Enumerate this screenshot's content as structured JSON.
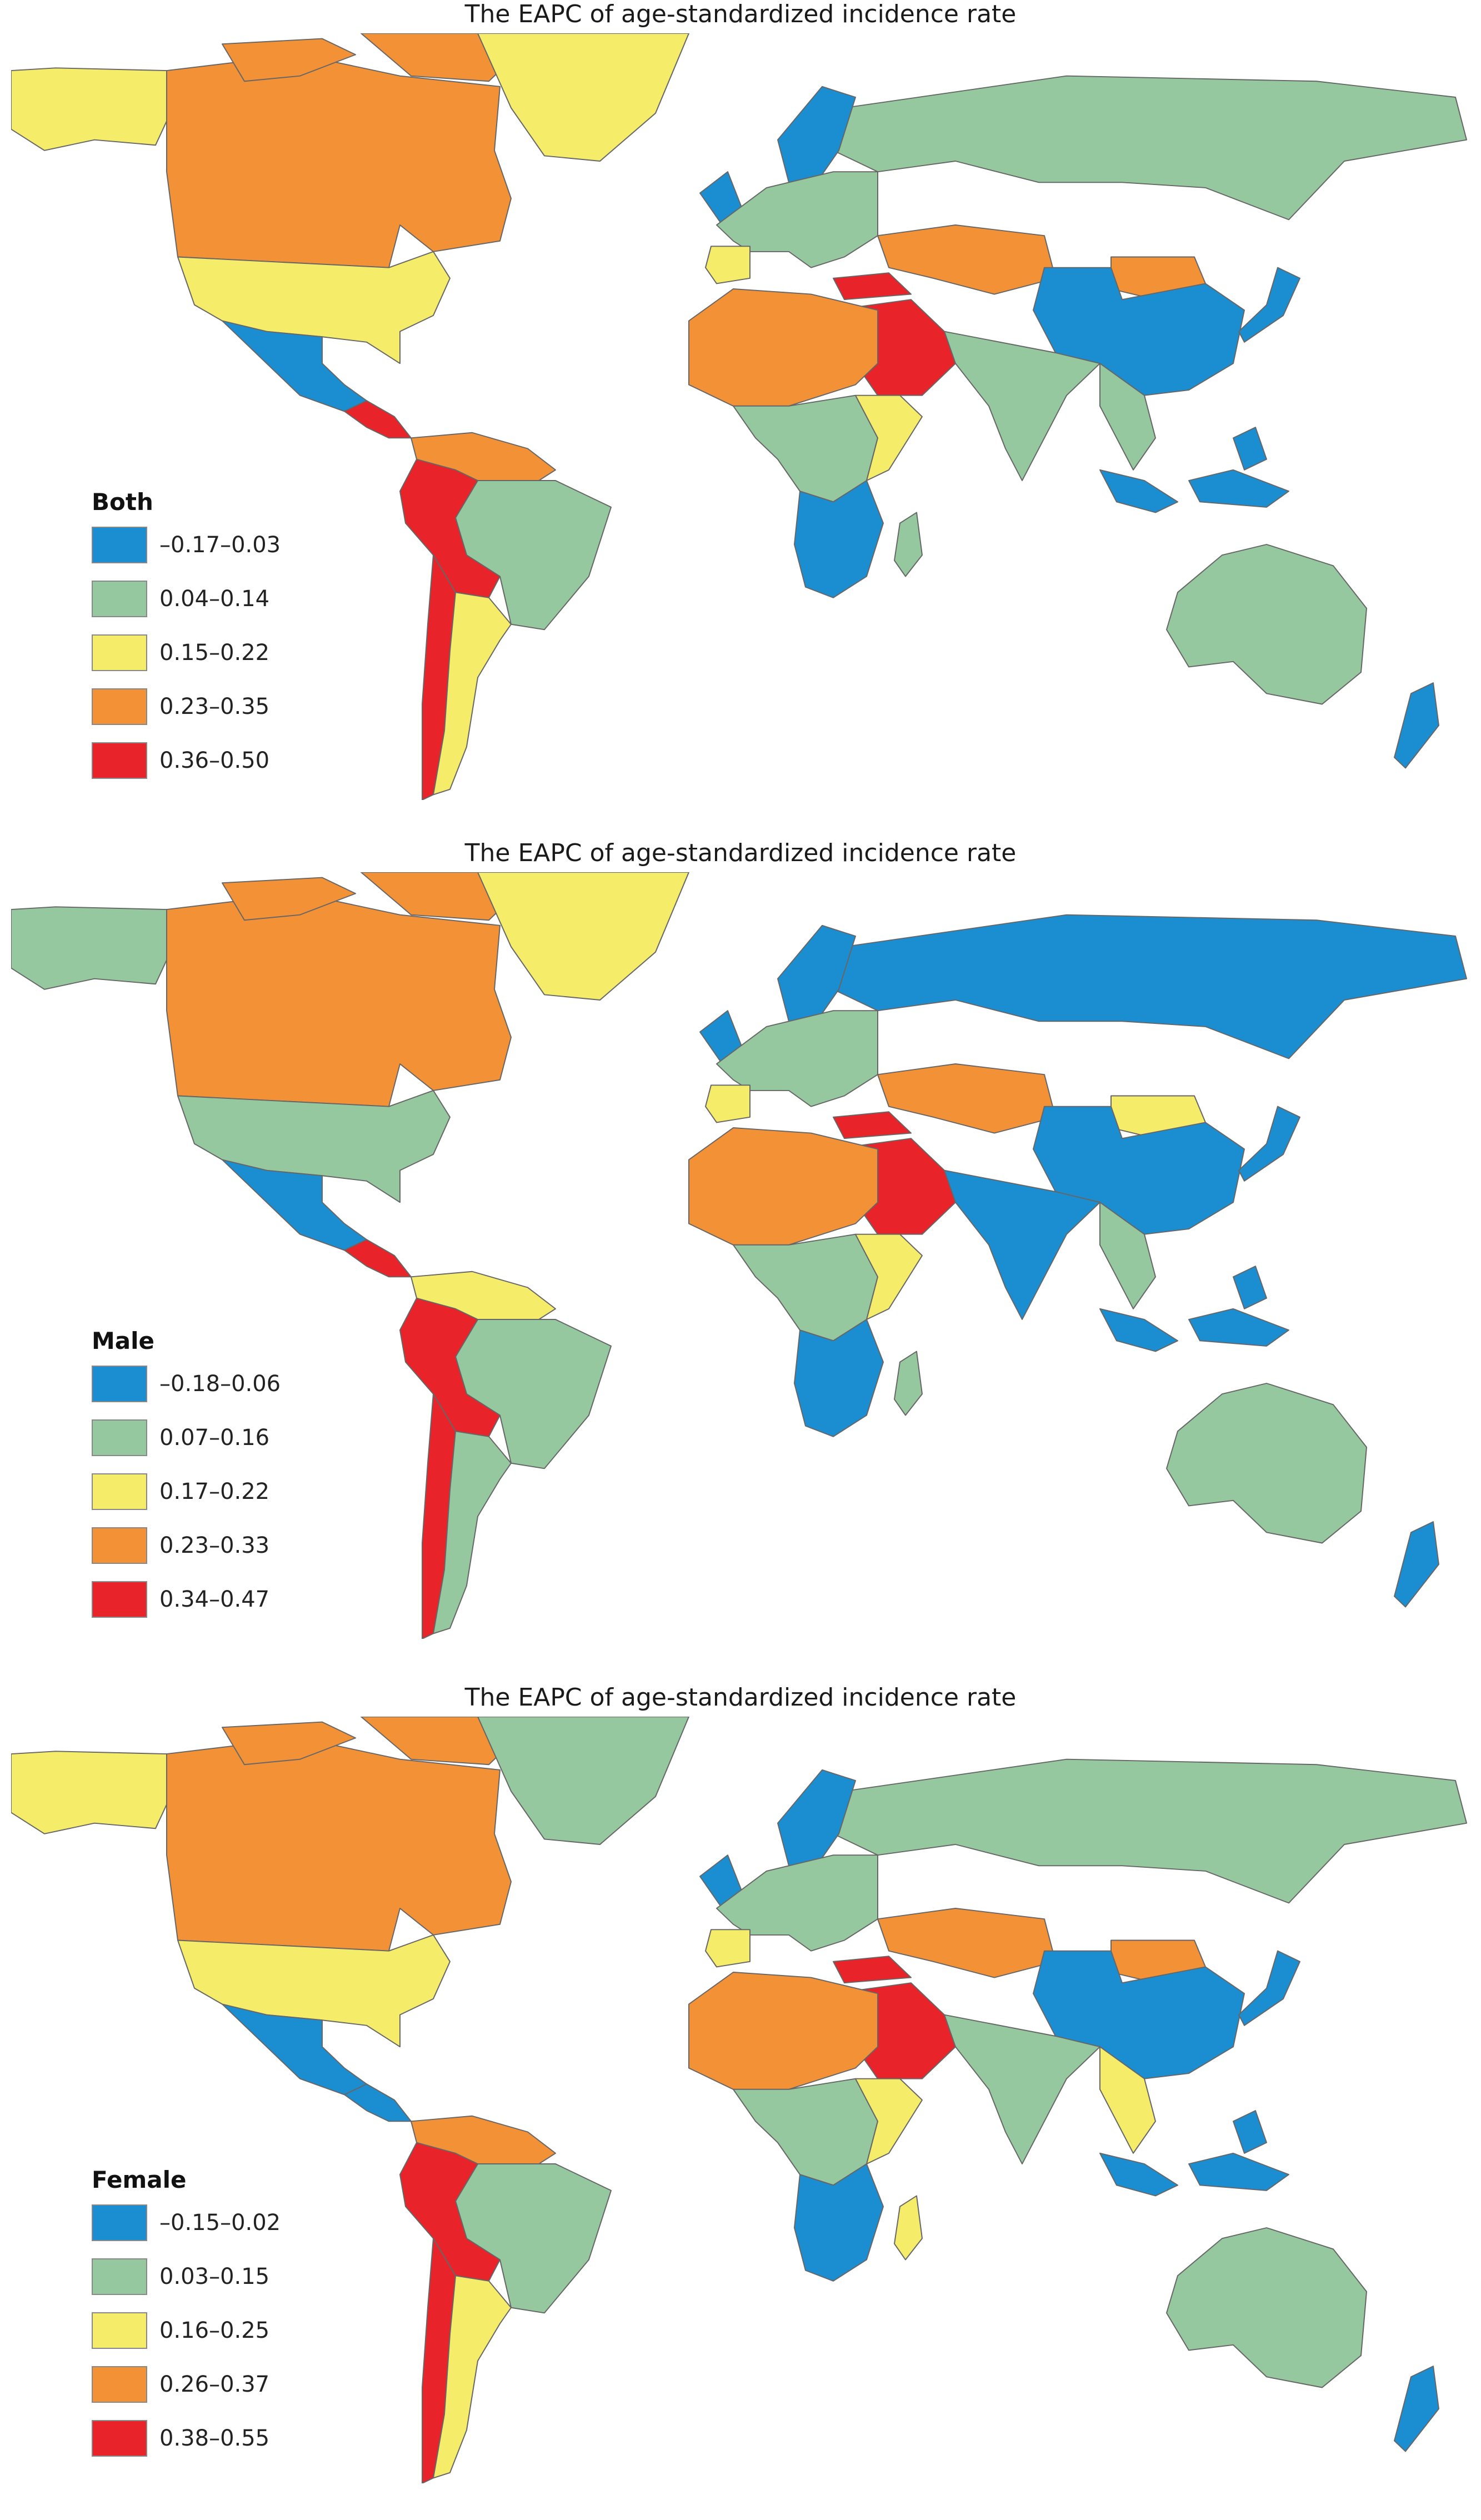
{
  "colors": {
    "blue": "#1b8ed1",
    "green": "#95c89e",
    "yellow": "#f5ec6a",
    "orange": "#f39136",
    "red": "#e8242a",
    "border": "#666666"
  },
  "panels": [
    {
      "title": "The EAPC of age-standardized incidence rate",
      "legend": {
        "title": "Both",
        "bins": [
          {
            "label": "–0.17–0.03",
            "color": "#1b8ed1"
          },
          {
            "label": "0.04–0.14",
            "color": "#95c89e"
          },
          {
            "label": "0.15–0.22",
            "color": "#f5ec6a"
          },
          {
            "label": "0.23–0.35",
            "color": "#f39136"
          },
          {
            "label": "0.36–0.50",
            "color": "#e8242a"
          }
        ]
      },
      "regions": {
        "alaska": "yellow",
        "canada": "orange",
        "arctic": "orange",
        "greenland": "yellow",
        "usa": "yellow",
        "mexico": "blue",
        "central_america": "red",
        "north_sa": "orange",
        "brazil": "green",
        "peru_bolivia": "red",
        "chile": "red",
        "argentina": "yellow",
        "russia": "green",
        "europe": "green",
        "uk_scandinavia": "blue",
        "iberia": "yellow",
        "china": "blue",
        "kazakhstan": "orange",
        "mongolia": "orange",
        "india": "green",
        "middle_east": "red",
        "turkey": "red",
        "north_africa": "orange",
        "central_africa": "green",
        "east_africa": "yellow",
        "south_africa": "blue",
        "madagascar": "green",
        "se_asia": "green",
        "indonesia": "blue",
        "japan": "blue",
        "australia": "green",
        "new_zealand": "blue"
      }
    },
    {
      "title": "The EAPC of age-standardized incidence rate",
      "legend": {
        "title": "Male",
        "bins": [
          {
            "label": "–0.18–0.06",
            "color": "#1b8ed1"
          },
          {
            "label": "0.07–0.16",
            "color": "#95c89e"
          },
          {
            "label": "0.17–0.22",
            "color": "#f5ec6a"
          },
          {
            "label": "0.23–0.33",
            "color": "#f39136"
          },
          {
            "label": "0.34–0.47",
            "color": "#e8242a"
          }
        ]
      },
      "regions": {
        "alaska": "green",
        "canada": "orange",
        "arctic": "orange",
        "greenland": "yellow",
        "usa": "green",
        "mexico": "blue",
        "central_america": "red",
        "north_sa": "yellow",
        "brazil": "green",
        "peru_bolivia": "red",
        "chile": "red",
        "argentina": "green",
        "russia": "blue",
        "europe": "green",
        "uk_scandinavia": "blue",
        "iberia": "yellow",
        "china": "blue",
        "kazakhstan": "orange",
        "mongolia": "yellow",
        "india": "blue",
        "middle_east": "red",
        "turkey": "red",
        "north_africa": "orange",
        "central_africa": "green",
        "east_africa": "yellow",
        "south_africa": "blue",
        "madagascar": "green",
        "se_asia": "green",
        "indonesia": "blue",
        "japan": "blue",
        "australia": "green",
        "new_zealand": "blue"
      }
    },
    {
      "title": "The EAPC of age-standardized incidence rate",
      "legend": {
        "title": "Female",
        "bins": [
          {
            "label": "–0.15–0.02",
            "color": "#1b8ed1"
          },
          {
            "label": "0.03–0.15",
            "color": "#95c89e"
          },
          {
            "label": "0.16–0.25",
            "color": "#f5ec6a"
          },
          {
            "label": "0.26–0.37",
            "color": "#f39136"
          },
          {
            "label": "0.38–0.55",
            "color": "#e8242a"
          }
        ]
      },
      "regions": {
        "alaska": "yellow",
        "canada": "orange",
        "arctic": "orange",
        "greenland": "green",
        "usa": "yellow",
        "mexico": "blue",
        "central_america": "blue",
        "north_sa": "orange",
        "brazil": "green",
        "peru_bolivia": "red",
        "chile": "red",
        "argentina": "yellow",
        "russia": "green",
        "europe": "green",
        "uk_scandinavia": "blue",
        "iberia": "yellow",
        "china": "blue",
        "kazakhstan": "orange",
        "mongolia": "orange",
        "india": "green",
        "middle_east": "red",
        "turkey": "red",
        "north_africa": "orange",
        "central_africa": "green",
        "east_africa": "yellow",
        "south_africa": "blue",
        "madagascar": "yellow",
        "se_asia": "yellow",
        "indonesia": "blue",
        "japan": "blue",
        "australia": "green",
        "new_zealand": "blue"
      }
    }
  ]
}
